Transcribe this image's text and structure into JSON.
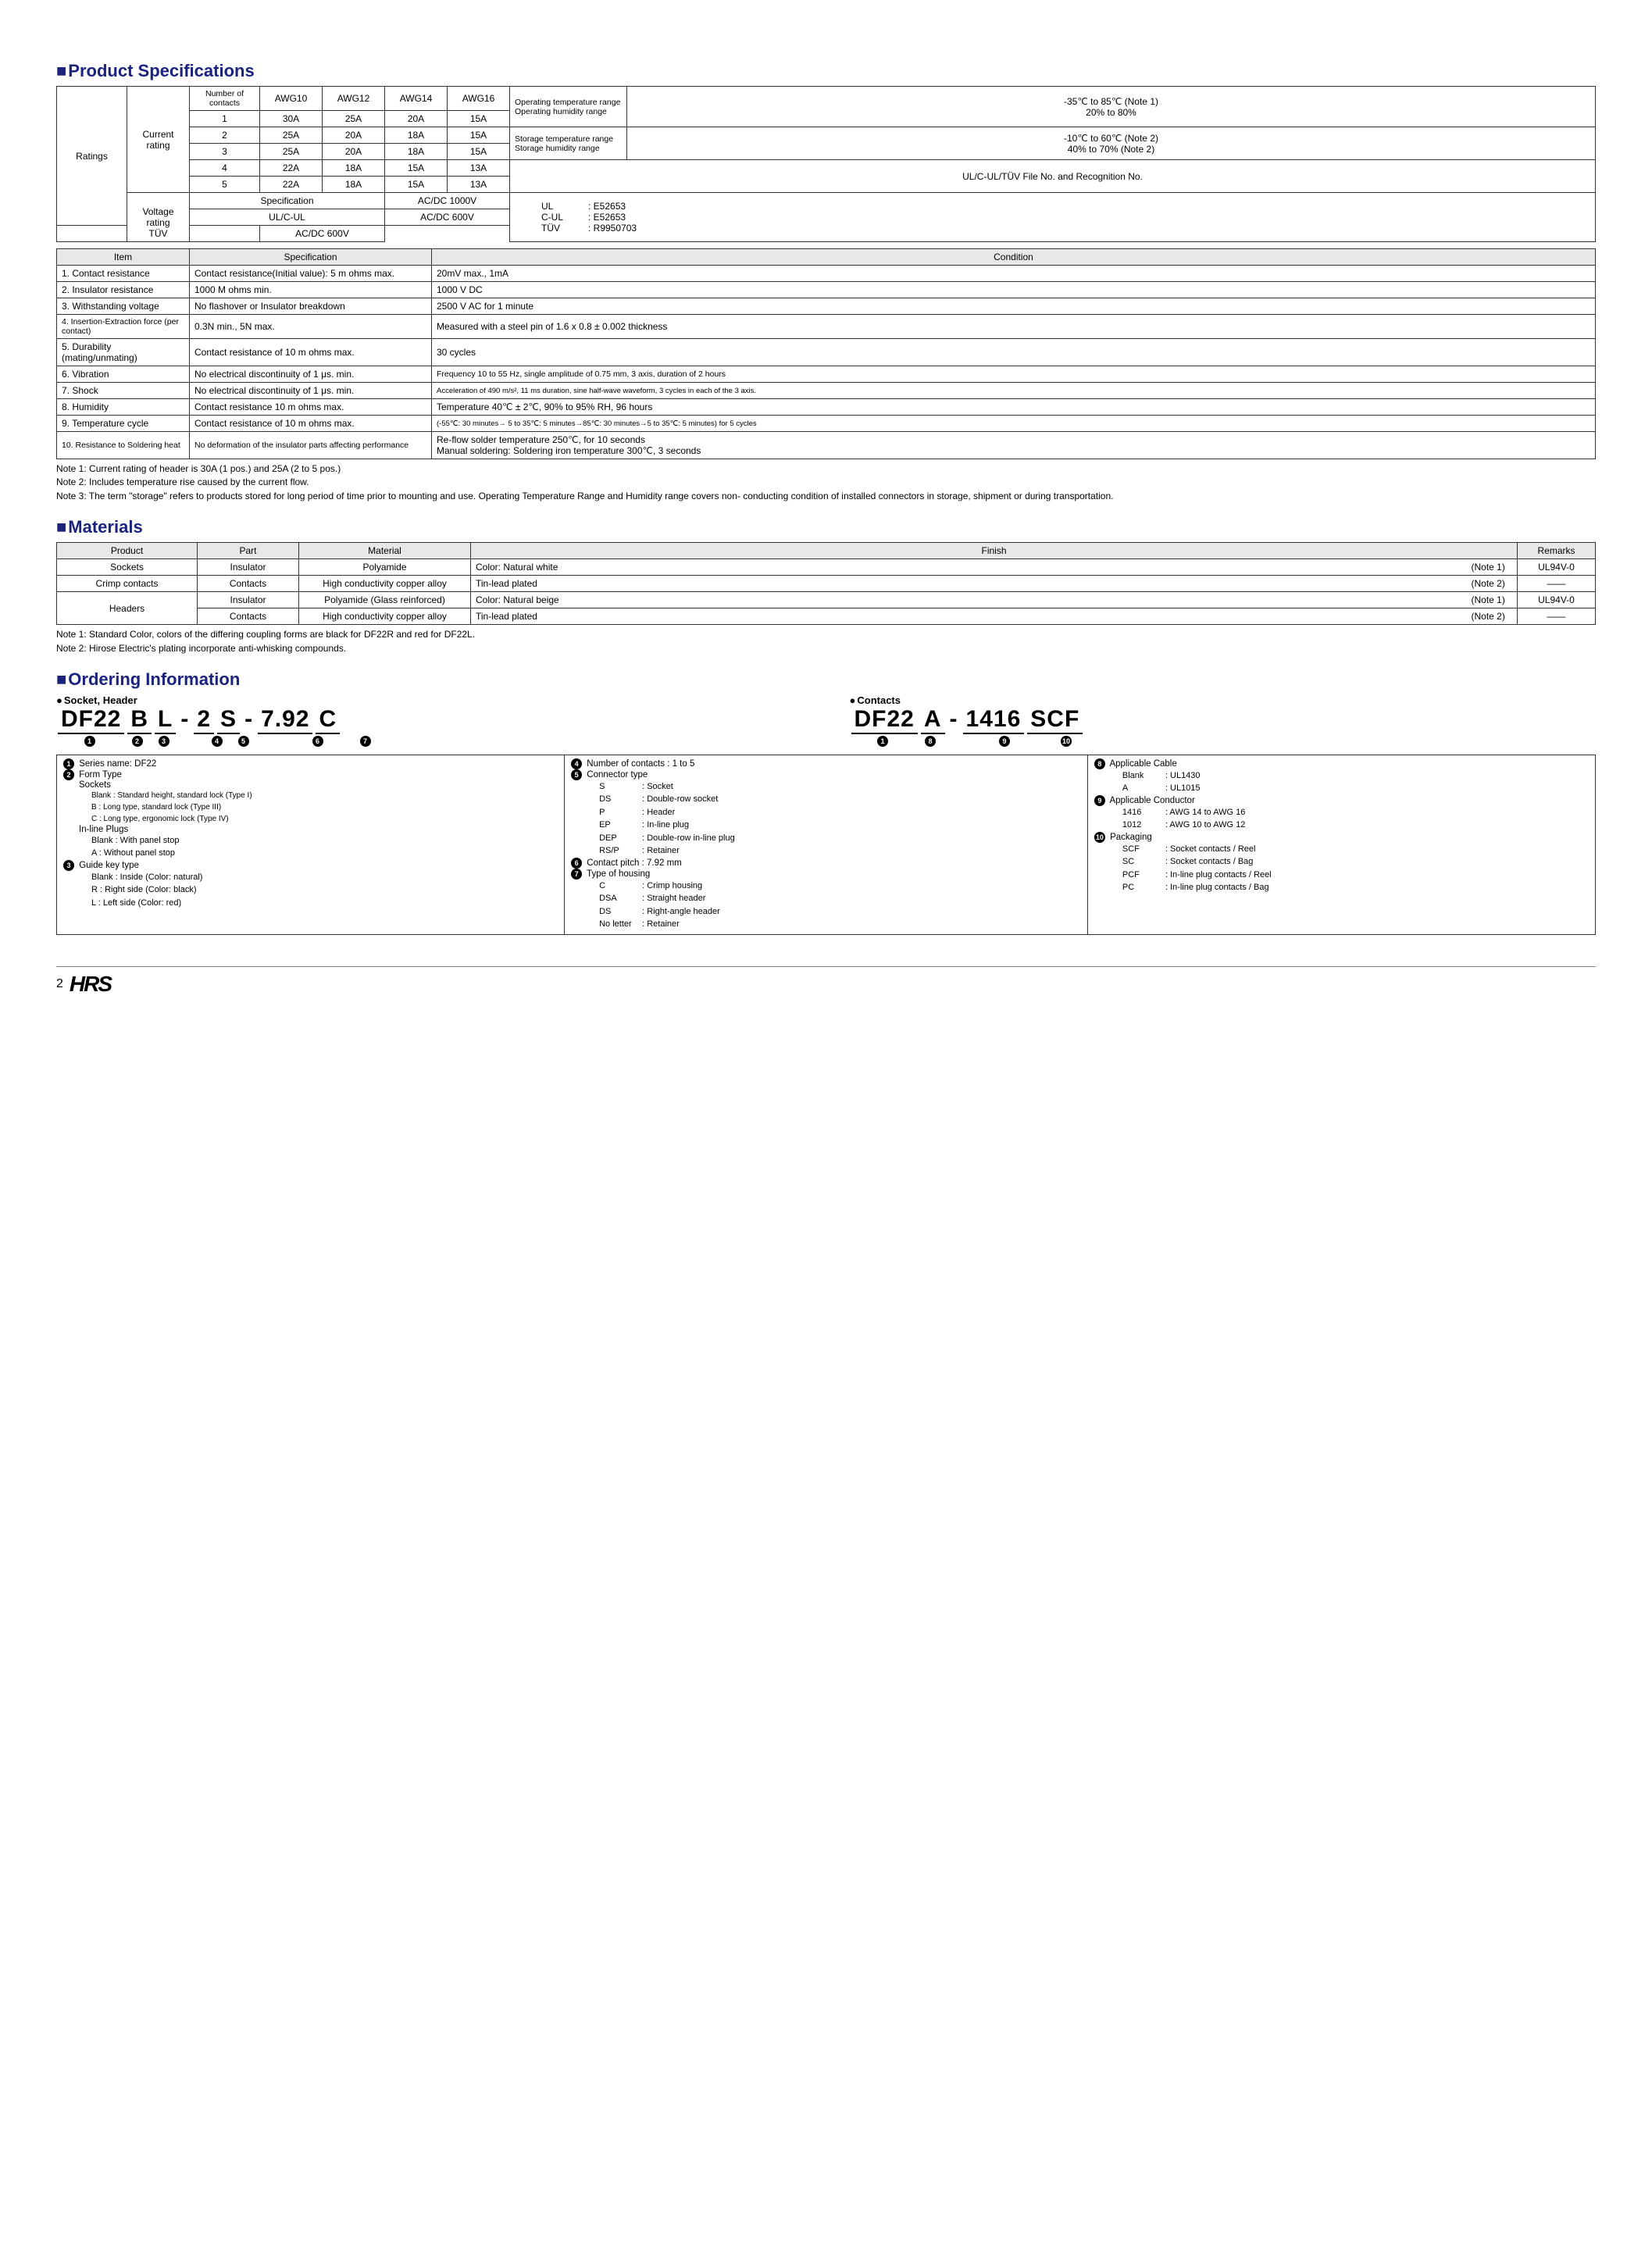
{
  "sections": {
    "spec_title": "Product Specifications",
    "materials_title": "Materials",
    "ordering_title": "Ordering Information"
  },
  "ratings": {
    "label": "Ratings",
    "current_label": "Current rating",
    "voltage_label": "Voltage rating",
    "header_num": "Number of contacts",
    "awg": [
      "AWG10",
      "AWG12",
      "AWG14",
      "AWG16"
    ],
    "rows": [
      {
        "n": "1",
        "v": [
          "30A",
          "25A",
          "20A",
          "15A"
        ]
      },
      {
        "n": "2",
        "v": [
          "25A",
          "20A",
          "18A",
          "15A"
        ]
      },
      {
        "n": "3",
        "v": [
          "25A",
          "20A",
          "18A",
          "15A"
        ]
      },
      {
        "n": "4",
        "v": [
          "22A",
          "18A",
          "15A",
          "13A"
        ]
      },
      {
        "n": "5",
        "v": [
          "22A",
          "18A",
          "15A",
          "13A"
        ]
      }
    ],
    "env": [
      {
        "k": "Operating temperature range",
        "v": "-35℃ to 85℃ (Note 1)"
      },
      {
        "k": "Operating humidity range",
        "v": "20% to 80%"
      },
      {
        "k": "Storage temperature range",
        "v": "-10℃ to 60℃ (Note 2)"
      },
      {
        "k": "Storage humidity range",
        "v": "40% to 70% (Note 2)"
      }
    ],
    "ul_line": "UL/C-UL/TÜV    File No. and Recognition No.",
    "voltage_rows": [
      {
        "spec": "Specification",
        "val": "AC/DC    1000V",
        "cert": "UL",
        "certval": ": E52653"
      },
      {
        "spec": "UL/C-UL",
        "val": "AC/DC     600V",
        "cert": "C-UL",
        "certval": ": E52653"
      },
      {
        "spec": "TÜV",
        "val": "AC/DC     600V",
        "cert": "TÜV",
        "certval": ": R9950703"
      }
    ]
  },
  "items_table": {
    "headers": [
      "Item",
      "Specification",
      "Condition"
    ],
    "rows": [
      {
        "i": "1. Contact resistance",
        "s": "Contact resistance(Initial value): 5 m ohms max.",
        "c": "20mV max., 1mA"
      },
      {
        "i": "2. Insulator resistance",
        "s": "1000 M ohms min.",
        "c": "1000 V DC"
      },
      {
        "i": "3. Withstanding voltage",
        "s": "No flashover or Insulator breakdown",
        "c": "2500 V AC for 1 minute"
      },
      {
        "i": "4. Insertion-Extraction force (per contact)",
        "s": "0.3N min., 5N max.",
        "c": "Measured with a steel pin of 1.6 x 0.8 ± 0.002 thickness",
        "small": true
      },
      {
        "i": "5. Durability (mating/unmating)",
        "s": "Contact resistance of 10 m ohms max.",
        "c": "30 cycles"
      },
      {
        "i": "6. Vibration",
        "s": "No electrical discontinuity of 1 μs. min.",
        "c": "Frequency 10 to 55 Hz, single amplitude of 0.75 mm, 3 axis, duration of 2 hours",
        "csmall": true
      },
      {
        "i": "7. Shock",
        "s": "No electrical discontinuity of 1 μs. min.",
        "c": "Acceleration of 490 m/s², 11 ms duration, sine half-wave waveform, 3 cycles in each of the 3 axis.",
        "cxsmall": true
      },
      {
        "i": "8. Humidity",
        "s": "Contact resistance 10 m ohms max.",
        "c": "Temperature 40℃ ± 2℃, 90% to 95% RH, 96 hours"
      },
      {
        "i": "9. Temperature cycle",
        "s": "Contact resistance of 10 m ohms max.",
        "c": "(-55℃: 30 minutes→ 5 to 35℃: 5 minutes→85℃: 30 minutes→5 to 35℃: 5 minutes) for 5 cycles",
        "cxsmall": true
      },
      {
        "i": "10. Resistance to Soldering heat",
        "s": "No deformation of the insulator parts affecting performance",
        "c": "Re-flow solder temperature 250℃, for 10 seconds\nManual soldering: Soldering iron temperature 300℃, 3 seconds",
        "ismall": true,
        "ssmall": true
      }
    ]
  },
  "spec_notes": [
    "Note 1: Current rating of header is 30A (1 pos.) and 25A (2 to 5 pos.)",
    "Note 2: Includes temperature rise caused by the current flow.",
    "Note 3: The term \"storage\" refers to products stored for long period of time prior to mounting and use. Operating Temperature Range and Humidity range covers non- conducting condition of installed connectors in storage, shipment or during transportation."
  ],
  "materials": {
    "headers": [
      "Product",
      "Part",
      "Material",
      "Finish",
      "Remarks"
    ],
    "rows": [
      {
        "p": "Sockets",
        "part": "Insulator",
        "m": "Polyamide",
        "f": "Color: Natural white",
        "fn": "(Note 1)",
        "r": "UL94V-0"
      },
      {
        "p": "Crimp contacts",
        "part": "Contacts",
        "m": "High conductivity copper alloy",
        "f": "Tin-lead plated",
        "fn": "(Note 2)",
        "r": "——"
      },
      {
        "p": "Headers",
        "part": "Insulator",
        "m": "Polyamide (Glass reinforced)",
        "f": "Color: Natural beige",
        "fn": "(Note 1)",
        "r": "UL94V-0",
        "rowspan": 2
      },
      {
        "part": "Contacts",
        "m": "High conductivity copper alloy",
        "f": "Tin-lead plated",
        "fn": "(Note 2)",
        "r": "——"
      }
    ]
  },
  "materials_notes": [
    "Note 1: Standard Color, colors of the differing coupling forms are black for DF22R and red for DF22L.",
    "Note 2: Hirose Electric's plating incorporate anti-whisking compounds."
  ],
  "ordering": {
    "socket_head": "Socket, Header",
    "contacts_head": "Contacts",
    "socket_parts": [
      "DF22",
      "B",
      "L",
      "-",
      "2",
      "S",
      "-",
      "7.92",
      "C"
    ],
    "socket_labels": [
      "1",
      "2",
      "3",
      "",
      "4",
      "5",
      "",
      "6",
      "7"
    ],
    "contact_parts": [
      "DF22",
      "A",
      "-",
      "1416",
      "SCF"
    ],
    "contact_labels": [
      "1",
      "8",
      "",
      "9",
      "10"
    ],
    "cols": [
      {
        "items": [
          {
            "n": "1",
            "head": "Series name: DF22"
          },
          {
            "n": "2",
            "head": "Form Type",
            "subs": [
              {
                "t": "Sockets",
                "lvl": 1
              },
              {
                "t": "Blank : Standard height, standard lock (Type I)",
                "small": true
              },
              {
                "t": "B : Long type, standard lock (Type III)",
                "small": true
              },
              {
                "t": "C : Long type, ergonomic lock (Type IV)",
                "small": true
              },
              {
                "t": "In-line Plugs",
                "lvl": 1
              },
              {
                "t": "Blank : With panel stop"
              },
              {
                "t": "A : Without panel stop"
              }
            ]
          },
          {
            "n": "3",
            "head": "Guide key type",
            "subs": [
              {
                "t": "Blank : Inside (Color: natural)"
              },
              {
                "t": "R : Right side (Color: black)"
              },
              {
                "t": "L : Left side (Color: red)"
              }
            ]
          }
        ]
      },
      {
        "items": [
          {
            "n": "4",
            "head": "Number of contacts : 1 to 5"
          },
          {
            "n": "5",
            "head": "Connector type",
            "subs": [
              {
                "k": "S",
                "v": ": Socket"
              },
              {
                "k": "DS",
                "v": ": Double-row socket"
              },
              {
                "k": "P",
                "v": ": Header"
              },
              {
                "k": "EP",
                "v": ": In-line plug"
              },
              {
                "k": "DEP",
                "v": ": Double-row in-line plug"
              },
              {
                "k": "RS/P",
                "v": ": Retainer"
              }
            ]
          },
          {
            "n": "6",
            "head": "Contact pitch         : 7.92 mm"
          },
          {
            "n": "7",
            "head": "Type of housing",
            "subs": [
              {
                "k": "C",
                "v": ": Crimp housing"
              },
              {
                "k": "DSA",
                "v": ": Straight header"
              },
              {
                "k": "DS",
                "v": ": Right-angle header"
              },
              {
                "k": "No letter",
                "v": ": Retainer"
              }
            ]
          }
        ]
      },
      {
        "items": [
          {
            "n": "8",
            "head": "Applicable Cable",
            "subs": [
              {
                "k": "Blank",
                "v": ": UL1430"
              },
              {
                "k": "A",
                "v": ": UL1015"
              }
            ]
          },
          {
            "n": "9",
            "head": "Applicable Conductor",
            "subs": [
              {
                "k": "1416",
                "v": ": AWG 14 to AWG 16"
              },
              {
                "k": "1012",
                "v": ": AWG 10 to AWG 12"
              }
            ]
          },
          {
            "n": "10",
            "head": "Packaging",
            "subs": [
              {
                "k": "SCF",
                "v": ": Socket contacts / Reel"
              },
              {
                "k": "SC",
                "v": ": Socket contacts / Bag"
              },
              {
                "k": "PCF",
                "v": ": In-line plug contacts / Reel"
              },
              {
                "k": "PC",
                "v": ": In-line plug contacts / Bag"
              }
            ]
          }
        ]
      }
    ]
  },
  "footer": {
    "page": "2",
    "logo": "HRS"
  }
}
